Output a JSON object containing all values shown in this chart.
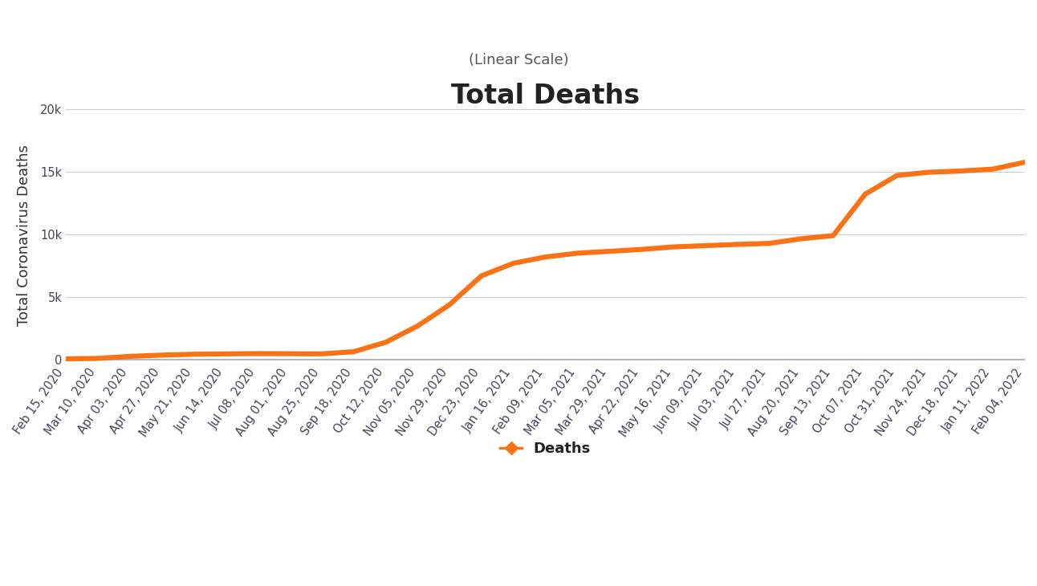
{
  "title": "Total Deaths",
  "subtitle": "(Linear Scale)",
  "ylabel": "Total Coronavirus Deaths",
  "line_color": "#F97316",
  "background_color": "#ffffff",
  "baseline_color": "#b0b8c8",
  "ylim": [
    -200,
    20000
  ],
  "yticks": [
    0,
    5000,
    10000,
    15000,
    20000
  ],
  "ytick_labels": [
    "0",
    "5k",
    "10k",
    "15k",
    "20k"
  ],
  "legend_label": "Deaths",
  "x_dates": [
    "Feb 15, 2020",
    "Mar 10, 2020",
    "Apr 03, 2020",
    "Apr 27, 2020",
    "May 21, 2020",
    "Jun 14, 2020",
    "Jul 08, 2020",
    "Aug 01, 2020",
    "Aug 25, 2020",
    "Sep 18, 2020",
    "Oct 12, 2020",
    "Nov 05, 2020",
    "Nov 29, 2020",
    "Dec 23, 2020",
    "Jan 16, 2021",
    "Feb 09, 2021",
    "Mar 05, 2021",
    "Mar 29, 2021",
    "Apr 22, 2021",
    "May 16, 2021",
    "Jun 09, 2021",
    "Jul 03, 2021",
    "Jul 27, 2021",
    "Aug 20, 2021",
    "Sep 13, 2021",
    "Oct 07, 2021",
    "Oct 31, 2021",
    "Nov 24, 2021",
    "Dec 18, 2021",
    "Jan 11, 2022",
    "Feb 04, 2022"
  ],
  "y_values": [
    80,
    120,
    280,
    380,
    450,
    480,
    500,
    490,
    480,
    650,
    1400,
    2700,
    4400,
    6700,
    7700,
    8200,
    8500,
    8650,
    8800,
    9000,
    9100,
    9200,
    9280,
    9650,
    9900,
    13200,
    14700,
    14950,
    15050,
    15200,
    15750
  ],
  "line_width": 4.5,
  "title_fontsize": 24,
  "subtitle_fontsize": 13,
  "ylabel_fontsize": 13,
  "tick_fontsize": 10.5,
  "legend_fontsize": 13,
  "grid_color": "#cccccc",
  "axis_color": "#aaaaaa",
  "title_color": "#222222",
  "subtitle_color": "#555555",
  "label_color": "#333333",
  "tick_color": "#444455"
}
